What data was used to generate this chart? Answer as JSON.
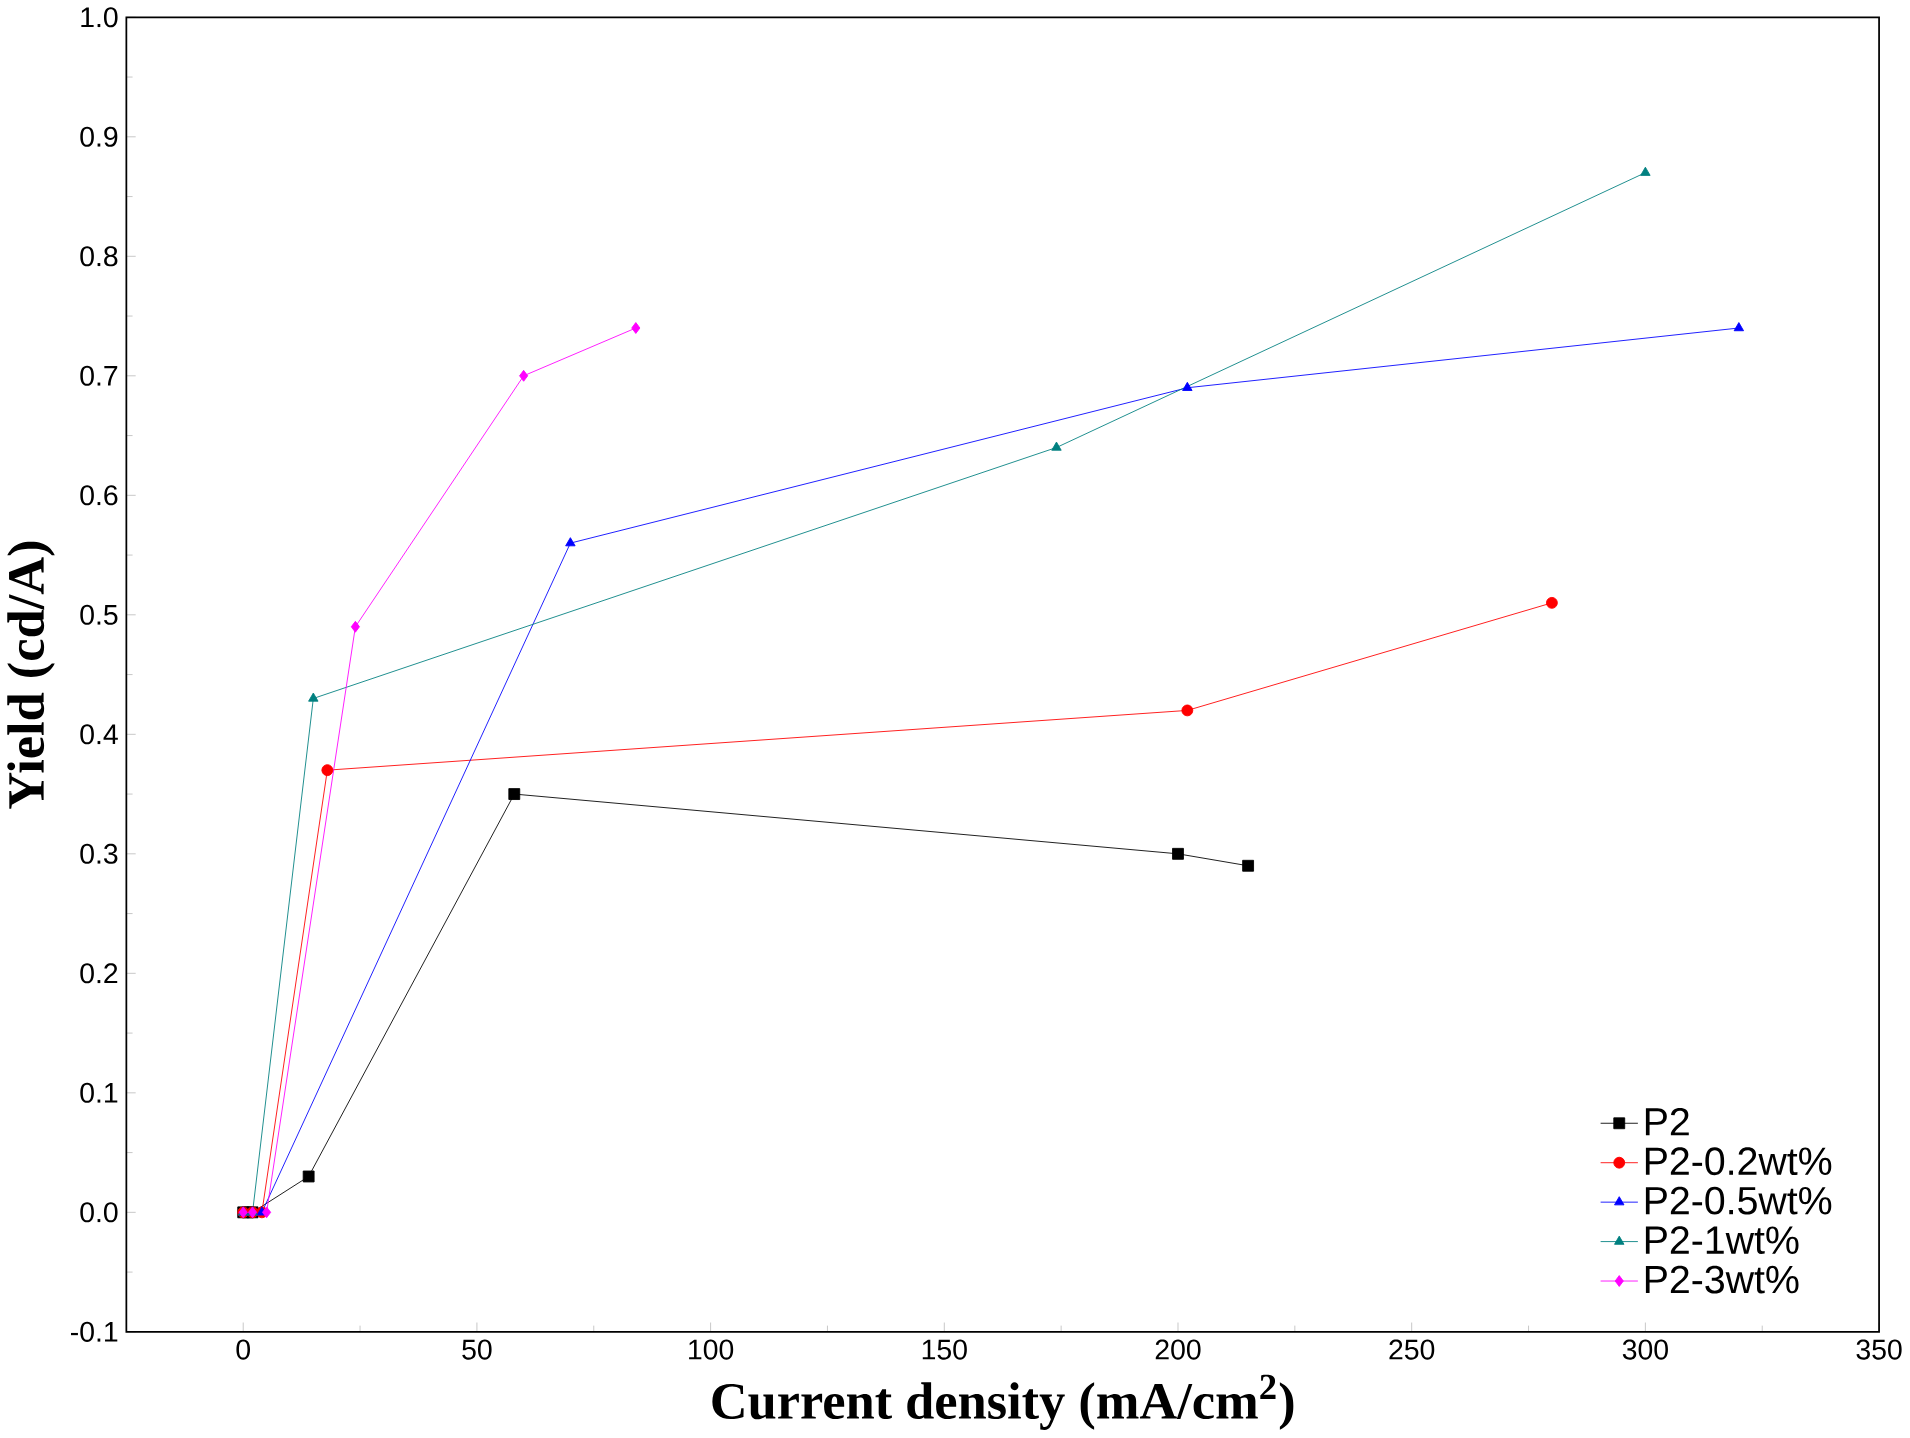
{
  "chart_data": {
    "type": "line",
    "xlabel": "Current density (mA/cm$^{2}$)",
    "ylabel": "Yield (cd/A)",
    "xlim": [
      -25,
      350
    ],
    "ylim": [
      -0.1,
      1.0
    ],
    "xticks": [
      0,
      50,
      100,
      150,
      200,
      250,
      300,
      350
    ],
    "yticks": [
      -0.1,
      {
        "value": 0,
        "label": "0.0"
      },
      0.1,
      0.2,
      0.3,
      0.4,
      0.5,
      0.6,
      0.7,
      0.8,
      0.9,
      {
        "value": 1,
        "label": "1.0"
      }
    ],
    "legend": "bottom right",
    "grid": false,
    "line_style": "solid",
    "series": [
      {
        "name": "P2",
        "color": "#000000",
        "marker": "square",
        "x": [
          0,
          1,
          2,
          14,
          58,
          200,
          215
        ],
        "values": [
          0,
          0,
          0,
          0.03,
          0.35,
          0.3,
          0.29
        ]
      },
      {
        "name": "P2-0.2wt%",
        "color": "#ff0000",
        "marker": "circle",
        "x": [
          0,
          2,
          4,
          18,
          202,
          280
        ],
        "values": [
          0,
          0,
          0,
          0.37,
          0.42,
          0.51
        ]
      },
      {
        "name": "P2-0.5wt%",
        "color": "#0000ff",
        "marker": "triangle",
        "x": [
          0,
          2,
          4,
          70,
          202,
          320
        ],
        "values": [
          0,
          0,
          0,
          0.56,
          0.69,
          0.74
        ]
      },
      {
        "name": "P2-1wt%",
        "color": "#008080",
        "marker": "triangle down",
        "x": [
          0,
          2,
          15,
          174,
          300
        ],
        "values": [
          0,
          0,
          0.43,
          0.64,
          0.87
        ]
      },
      {
        "name": "P2-3wt%",
        "color": "#ff00ff",
        "marker": "diamond",
        "x": [
          0,
          2,
          5,
          24,
          60,
          84
        ],
        "values": [
          0,
          0,
          0,
          0.49,
          0.7,
          0.74
        ]
      }
    ]
  }
}
